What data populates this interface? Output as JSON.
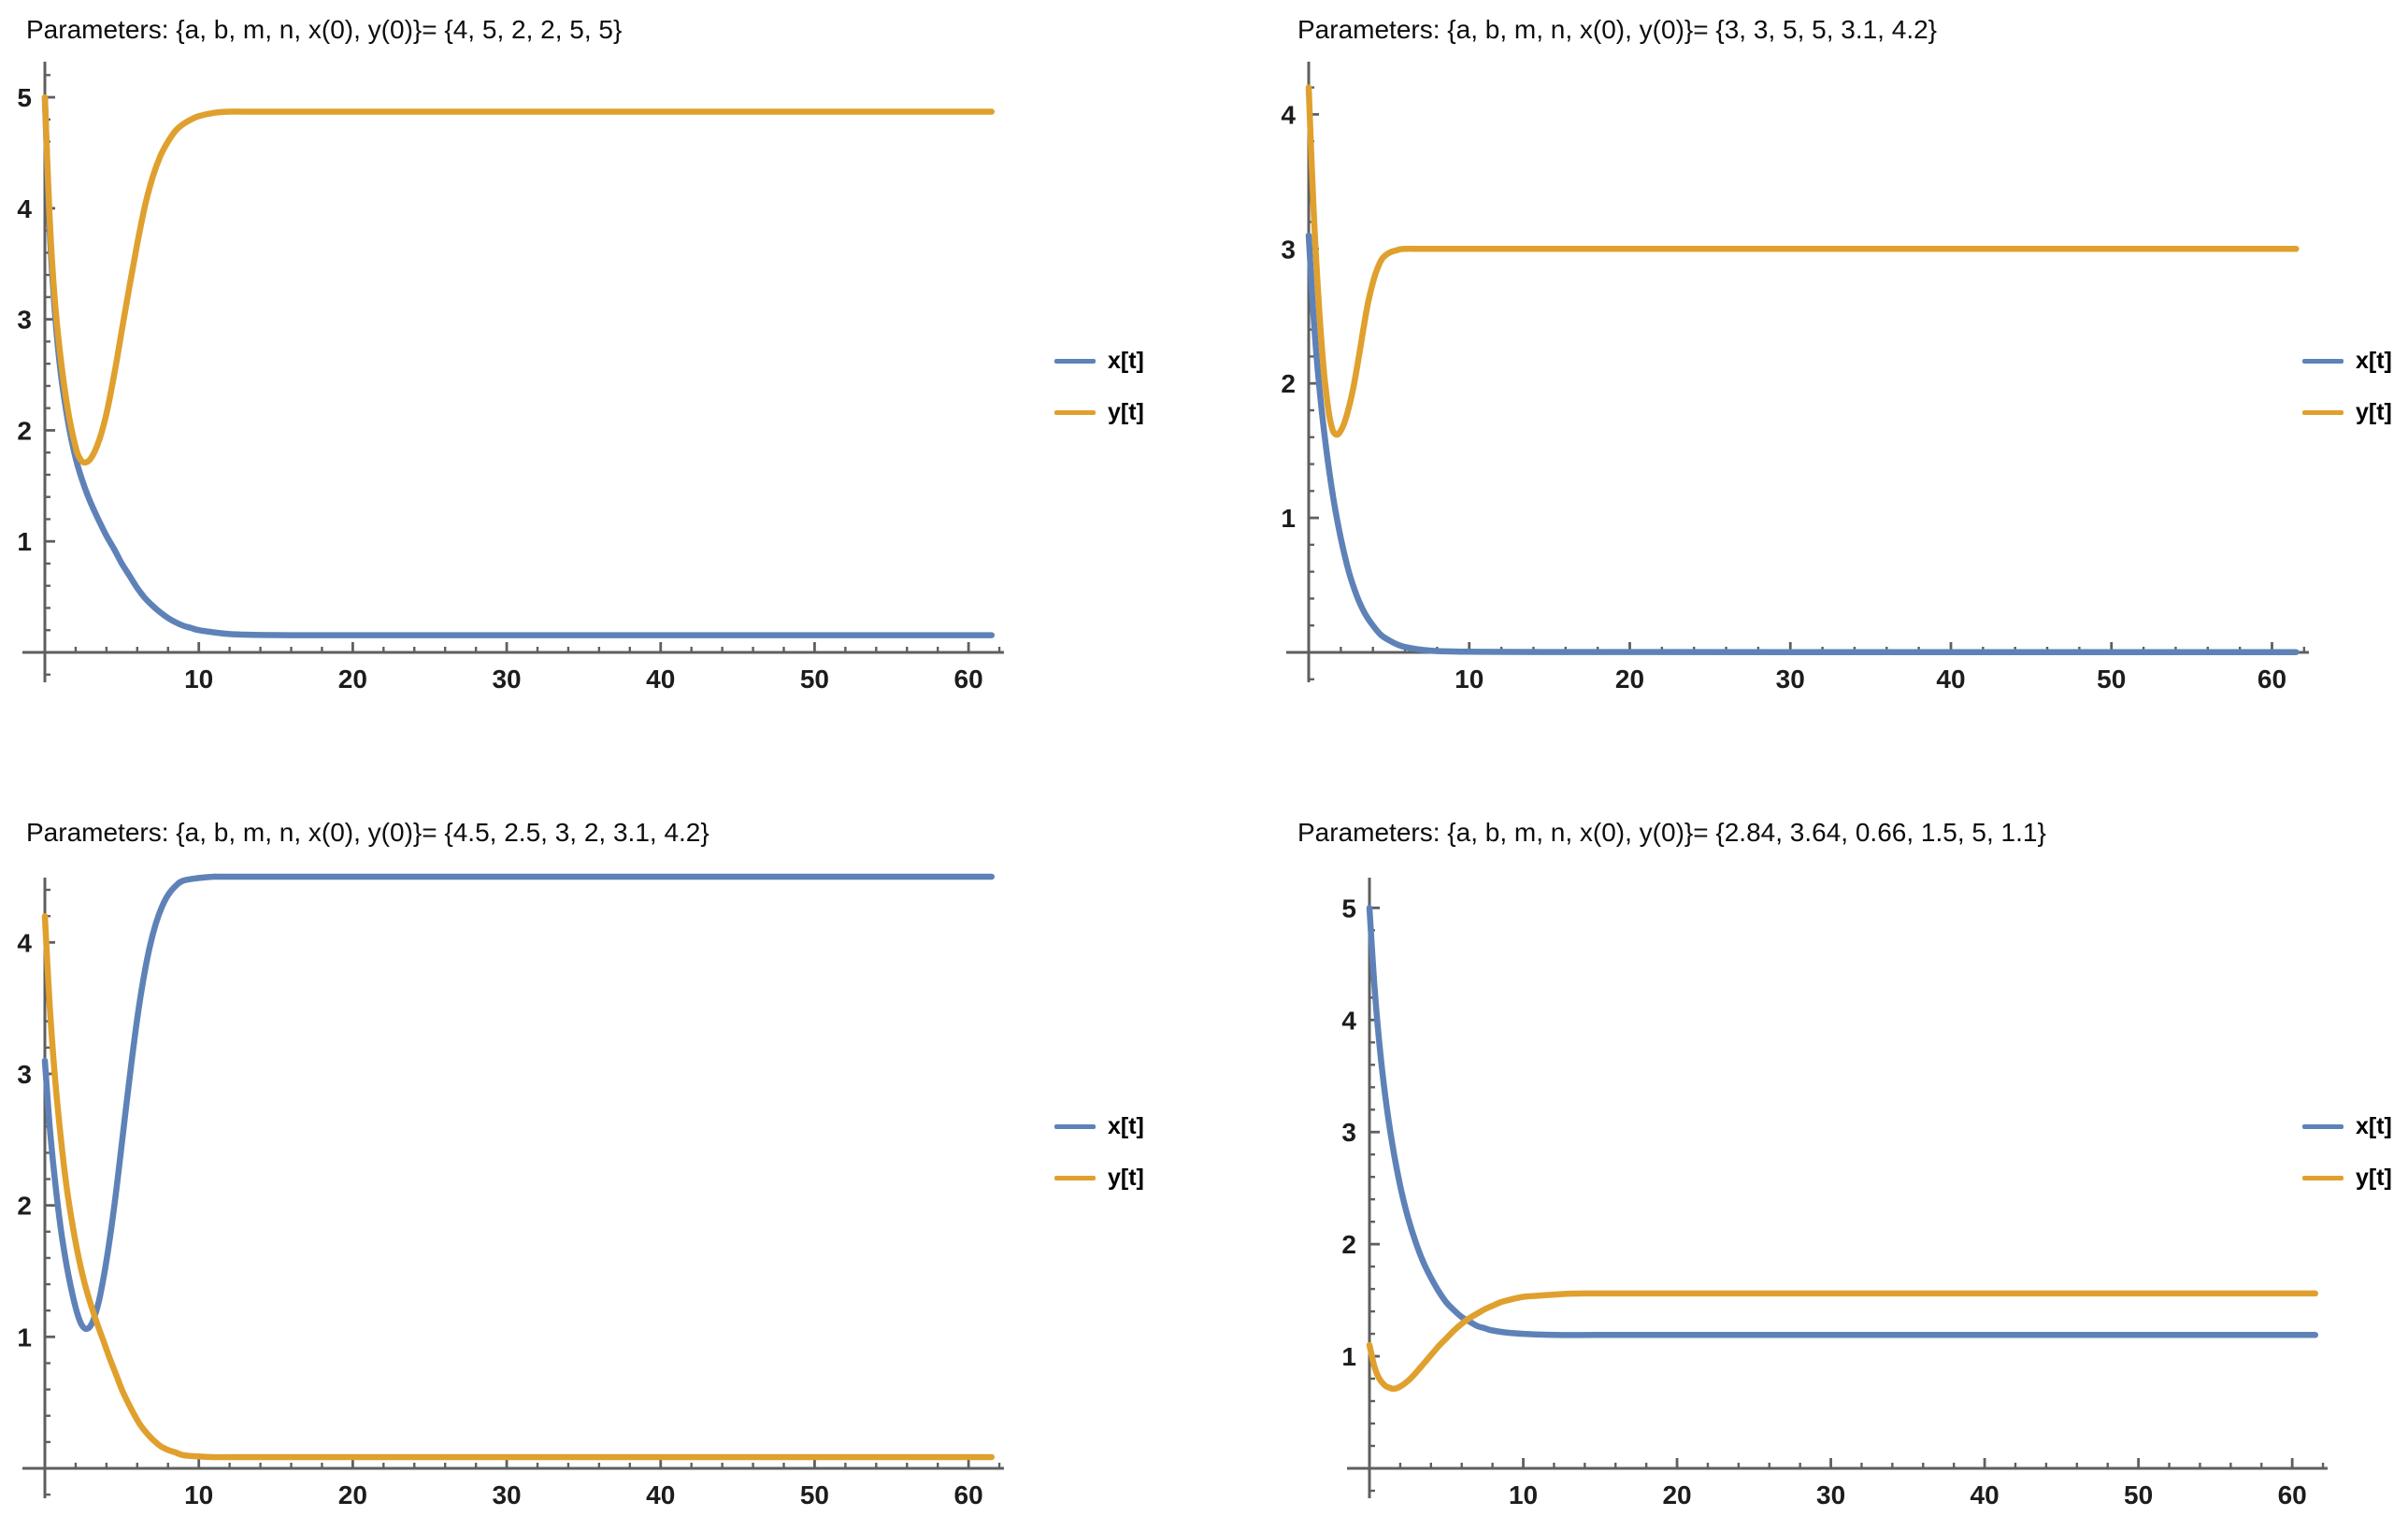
{
  "legend": {
    "x_label": "x[t]",
    "y_label": "y[t]"
  },
  "colors": {
    "x_series": "#5e82b8",
    "y_series": "#e0a02e",
    "axis": "#5f5f5f",
    "tick_label": "#1c1c1c",
    "title": "#0d0d0d",
    "background": "#ffffff"
  },
  "chart_data": [
    {
      "type": "line",
      "id": "top-left",
      "title": "Parameters: {a, b, m, n, x(0), y(0)}= {4, 5, 2, 2, 5, 5}",
      "xlabel": "",
      "ylabel": "",
      "xlim": [
        0,
        62.3
      ],
      "ylim": [
        0,
        5.27
      ],
      "xticks": [
        10,
        20,
        30,
        40,
        50,
        60
      ],
      "yticks": [
        1,
        2,
        3,
        4,
        5
      ],
      "minor_x_step": 2,
      "minor_y_step": 0.2,
      "grid": false,
      "legend_position": "right",
      "legend_entries": [
        "x[t]",
        "y[t]"
      ],
      "series": [
        {
          "name": "x[t]",
          "color_key": "x_series",
          "points": [
            [
              0,
              5
            ],
            [
              0.3,
              3.85
            ],
            [
              0.6,
              3.15
            ],
            [
              1,
              2.55
            ],
            [
              1.5,
              2.08
            ],
            [
              2,
              1.75
            ],
            [
              2.5,
              1.52
            ],
            [
              3,
              1.34
            ],
            [
              3.5,
              1.19
            ],
            [
              4,
              1.05
            ],
            [
              4.5,
              0.93
            ],
            [
              5,
              0.8
            ],
            [
              5.5,
              0.69
            ],
            [
              6,
              0.58
            ],
            [
              6.5,
              0.49
            ],
            [
              7,
              0.42
            ],
            [
              7.5,
              0.36
            ],
            [
              8,
              0.31
            ],
            [
              8.5,
              0.27
            ],
            [
              9,
              0.24
            ],
            [
              9.5,
              0.22
            ],
            [
              10,
              0.2
            ],
            [
              11,
              0.18
            ],
            [
              12,
              0.165
            ],
            [
              13,
              0.16
            ],
            [
              14,
              0.157
            ],
            [
              16,
              0.155
            ],
            [
              20,
              0.155
            ],
            [
              30,
              0.155
            ],
            [
              40,
              0.155
            ],
            [
              50,
              0.155
            ],
            [
              61.5,
              0.155
            ]
          ]
        },
        {
          "name": "y[t]",
          "color_key": "y_series",
          "points": [
            [
              0,
              5
            ],
            [
              0.3,
              3.95
            ],
            [
              0.6,
              3.25
            ],
            [
              1,
              2.68
            ],
            [
              1.5,
              2.18
            ],
            [
              2,
              1.85
            ],
            [
              2.3,
              1.74
            ],
            [
              2.6,
              1.71
            ],
            [
              3,
              1.75
            ],
            [
              3.5,
              1.9
            ],
            [
              4,
              2.15
            ],
            [
              4.5,
              2.5
            ],
            [
              5,
              2.9
            ],
            [
              5.5,
              3.3
            ],
            [
              6,
              3.68
            ],
            [
              6.5,
              4.02
            ],
            [
              7,
              4.28
            ],
            [
              7.5,
              4.47
            ],
            [
              8,
              4.6
            ],
            [
              8.5,
              4.7
            ],
            [
              9,
              4.76
            ],
            [
              9.5,
              4.8
            ],
            [
              10,
              4.83
            ],
            [
              11,
              4.86
            ],
            [
              12,
              4.87
            ],
            [
              14,
              4.87
            ],
            [
              20,
              4.87
            ],
            [
              30,
              4.87
            ],
            [
              40,
              4.87
            ],
            [
              50,
              4.87
            ],
            [
              61.5,
              4.87
            ]
          ]
        }
      ]
    },
    {
      "type": "line",
      "id": "top-right",
      "title": "Parameters: {a, b, m, n, x(0), y(0)}= {3, 3, 5, 5, 3.1, 4.2}",
      "xlabel": "",
      "ylabel": "",
      "xlim": [
        0,
        62.3
      ],
      "ylim": [
        0,
        4.35
      ],
      "xticks": [
        10,
        20,
        30,
        40,
        50,
        60
      ],
      "yticks": [
        1,
        2,
        3,
        4
      ],
      "minor_x_step": 2,
      "minor_y_step": 0.2,
      "grid": false,
      "legend_position": "right",
      "legend_entries": [
        "x[t]",
        "y[t]"
      ],
      "series": [
        {
          "name": "x[t]",
          "color_key": "x_series",
          "points": [
            [
              0,
              3.1
            ],
            [
              0.3,
              2.5
            ],
            [
              0.6,
              2.05
            ],
            [
              1,
              1.6
            ],
            [
              1.5,
              1.17
            ],
            [
              2,
              0.85
            ],
            [
              2.5,
              0.6
            ],
            [
              3,
              0.42
            ],
            [
              3.5,
              0.29
            ],
            [
              4,
              0.2
            ],
            [
              4.5,
              0.13
            ],
            [
              5,
              0.09
            ],
            [
              5.5,
              0.06
            ],
            [
              6,
              0.04
            ],
            [
              7,
              0.02
            ],
            [
              8,
              0.01
            ],
            [
              10,
              0.005
            ],
            [
              15,
              0.003
            ],
            [
              30,
              0.002
            ],
            [
              61.5,
              0.002
            ]
          ]
        },
        {
          "name": "y[t]",
          "color_key": "y_series",
          "points": [
            [
              0,
              4.2
            ],
            [
              0.3,
              3.3
            ],
            [
              0.6,
              2.65
            ],
            [
              0.9,
              2.15
            ],
            [
              1.1,
              1.92
            ],
            [
              1.3,
              1.75
            ],
            [
              1.5,
              1.65
            ],
            [
              1.7,
              1.62
            ],
            [
              1.9,
              1.63
            ],
            [
              2.2,
              1.7
            ],
            [
              2.5,
              1.82
            ],
            [
              2.8,
              1.98
            ],
            [
              3.1,
              2.18
            ],
            [
              3.4,
              2.4
            ],
            [
              3.7,
              2.6
            ],
            [
              4,
              2.75
            ],
            [
              4.3,
              2.86
            ],
            [
              4.6,
              2.93
            ],
            [
              5,
              2.97
            ],
            [
              5.5,
              2.99
            ],
            [
              6,
              3.0
            ],
            [
              8,
              3.0
            ],
            [
              20,
              3.0
            ],
            [
              40,
              3.0
            ],
            [
              61.5,
              3.0
            ]
          ]
        }
      ]
    },
    {
      "type": "line",
      "id": "bottom-left",
      "title": "Parameters: {a, b, m, n, x(0), y(0)}= {4.5, 2.5, 3, 2, 3.1, 4.2}",
      "xlabel": "",
      "ylabel": "",
      "xlim": [
        0,
        62.3
      ],
      "ylim": [
        0,
        4.45
      ],
      "xticks": [
        10,
        20,
        30,
        40,
        50,
        60
      ],
      "yticks": [
        1,
        2,
        3,
        4
      ],
      "minor_x_step": 2,
      "minor_y_step": 0.2,
      "grid": false,
      "legend_position": "right",
      "legend_entries": [
        "x[t]",
        "y[t]"
      ],
      "series": [
        {
          "name": "x[t]",
          "color_key": "x_series",
          "points": [
            [
              0,
              3.1
            ],
            [
              0.3,
              2.62
            ],
            [
              0.6,
              2.25
            ],
            [
              1,
              1.85
            ],
            [
              1.4,
              1.55
            ],
            [
              1.8,
              1.32
            ],
            [
              2.1,
              1.18
            ],
            [
              2.4,
              1.09
            ],
            [
              2.7,
              1.06
            ],
            [
              3,
              1.09
            ],
            [
              3.3,
              1.18
            ],
            [
              3.6,
              1.32
            ],
            [
              4,
              1.58
            ],
            [
              4.4,
              1.9
            ],
            [
              4.8,
              2.27
            ],
            [
              5.2,
              2.67
            ],
            [
              5.6,
              3.06
            ],
            [
              6,
              3.42
            ],
            [
              6.4,
              3.72
            ],
            [
              6.8,
              3.96
            ],
            [
              7.2,
              4.14
            ],
            [
              7.6,
              4.27
            ],
            [
              8,
              4.36
            ],
            [
              8.5,
              4.43
            ],
            [
              9,
              4.47
            ],
            [
              10,
              4.49
            ],
            [
              11,
              4.5
            ],
            [
              12,
              4.5
            ],
            [
              20,
              4.5
            ],
            [
              30,
              4.5
            ],
            [
              40,
              4.5
            ],
            [
              50,
              4.5
            ],
            [
              61.5,
              4.5
            ]
          ]
        },
        {
          "name": "y[t]",
          "color_key": "y_series",
          "points": [
            [
              0,
              4.2
            ],
            [
              0.3,
              3.55
            ],
            [
              0.6,
              3.05
            ],
            [
              1,
              2.55
            ],
            [
              1.4,
              2.15
            ],
            [
              1.8,
              1.85
            ],
            [
              2.2,
              1.6
            ],
            [
              2.6,
              1.4
            ],
            [
              3,
              1.24
            ],
            [
              3.4,
              1.1
            ],
            [
              3.8,
              0.97
            ],
            [
              4.2,
              0.84
            ],
            [
              4.6,
              0.72
            ],
            [
              5,
              0.6
            ],
            [
              5.4,
              0.5
            ],
            [
              5.8,
              0.41
            ],
            [
              6.2,
              0.33
            ],
            [
              6.6,
              0.27
            ],
            [
              7,
              0.22
            ],
            [
              7.5,
              0.17
            ],
            [
              8,
              0.14
            ],
            [
              8.5,
              0.12
            ],
            [
              9,
              0.1
            ],
            [
              10,
              0.09
            ],
            [
              11,
              0.085
            ],
            [
              12,
              0.085
            ],
            [
              20,
              0.085
            ],
            [
              30,
              0.085
            ],
            [
              40,
              0.085
            ],
            [
              50,
              0.085
            ],
            [
              61.5,
              0.085
            ]
          ]
        }
      ]
    },
    {
      "type": "line",
      "id": "bottom-right",
      "title": "Parameters: {a, b, m, n, x(0), y(0)}= {2.84, 3.64, 0.66, 1.5, 5, 1.1}",
      "xlabel": "",
      "ylabel": "",
      "xlim": [
        0,
        62.3
      ],
      "ylim": [
        0,
        5.22
      ],
      "xticks": [
        10,
        20,
        30,
        40,
        50,
        60
      ],
      "yticks": [
        1,
        2,
        3,
        4,
        5
      ],
      "minor_x_step": 2,
      "minor_y_step": 0.2,
      "grid": false,
      "legend_position": "right",
      "legend_entries": [
        "x[t]",
        "y[t]"
      ],
      "series": [
        {
          "name": "x[t]",
          "color_key": "x_series",
          "points": [
            [
              0,
              5
            ],
            [
              0.3,
              4.35
            ],
            [
              0.6,
              3.85
            ],
            [
              1,
              3.35
            ],
            [
              1.5,
              2.88
            ],
            [
              2,
              2.52
            ],
            [
              2.5,
              2.24
            ],
            [
              3,
              2.02
            ],
            [
              3.5,
              1.84
            ],
            [
              4,
              1.7
            ],
            [
              4.5,
              1.58
            ],
            [
              5,
              1.48
            ],
            [
              5.5,
              1.41
            ],
            [
              6,
              1.35
            ],
            [
              6.5,
              1.31
            ],
            [
              7,
              1.27
            ],
            [
              7.5,
              1.25
            ],
            [
              8,
              1.23
            ],
            [
              9,
              1.21
            ],
            [
              10,
              1.2
            ],
            [
              12,
              1.19
            ],
            [
              15,
              1.19
            ],
            [
              20,
              1.19
            ],
            [
              30,
              1.19
            ],
            [
              40,
              1.19
            ],
            [
              50,
              1.19
            ],
            [
              61.5,
              1.19
            ]
          ]
        },
        {
          "name": "y[t]",
          "color_key": "y_series",
          "points": [
            [
              0,
              1.1
            ],
            [
              0.3,
              0.92
            ],
            [
              0.6,
              0.81
            ],
            [
              1,
              0.74
            ],
            [
              1.3,
              0.72
            ],
            [
              1.6,
              0.71
            ],
            [
              2,
              0.73
            ],
            [
              2.5,
              0.78
            ],
            [
              3,
              0.85
            ],
            [
              3.5,
              0.93
            ],
            [
              4,
              1.01
            ],
            [
              4.5,
              1.09
            ],
            [
              5,
              1.16
            ],
            [
              5.5,
              1.23
            ],
            [
              6,
              1.29
            ],
            [
              6.5,
              1.34
            ],
            [
              7,
              1.38
            ],
            [
              7.5,
              1.42
            ],
            [
              8,
              1.45
            ],
            [
              8.5,
              1.48
            ],
            [
              9,
              1.5
            ],
            [
              10,
              1.53
            ],
            [
              11,
              1.54
            ],
            [
              12,
              1.55
            ],
            [
              14,
              1.56
            ],
            [
              20,
              1.56
            ],
            [
              30,
              1.56
            ],
            [
              40,
              1.56
            ],
            [
              50,
              1.56
            ],
            [
              61.5,
              1.56
            ]
          ]
        }
      ]
    }
  ]
}
